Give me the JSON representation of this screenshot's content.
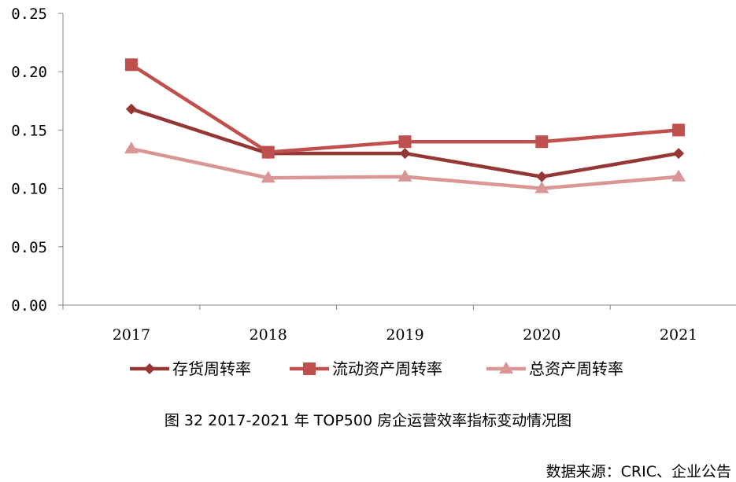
{
  "chart_data": {
    "type": "line",
    "title": "图 32 2017-2021 年 TOP500 房企运营效率指标变动情况图",
    "source": "数据来源：CRIC、企业公告",
    "categories": [
      "2017",
      "2018",
      "2019",
      "2020",
      "2021"
    ],
    "ylim": [
      0,
      0.25
    ],
    "yticks": [
      "0.00",
      "0.05",
      "0.10",
      "0.15",
      "0.20",
      "0.25"
    ],
    "legend_position": "bottom",
    "grid": false,
    "series": [
      {
        "name": "存货周转率",
        "marker": "diamond",
        "color": "#953735",
        "values": [
          0.168,
          0.13,
          0.13,
          0.11,
          0.13
        ]
      },
      {
        "name": "流动资产周转率",
        "marker": "square",
        "color": "#C0504D",
        "values": [
          0.206,
          0.131,
          0.14,
          0.14,
          0.15
        ]
      },
      {
        "name": "总资产周转率",
        "marker": "triangle",
        "color": "#D99694",
        "values": [
          0.134,
          0.109,
          0.11,
          0.1,
          0.11
        ]
      }
    ]
  }
}
